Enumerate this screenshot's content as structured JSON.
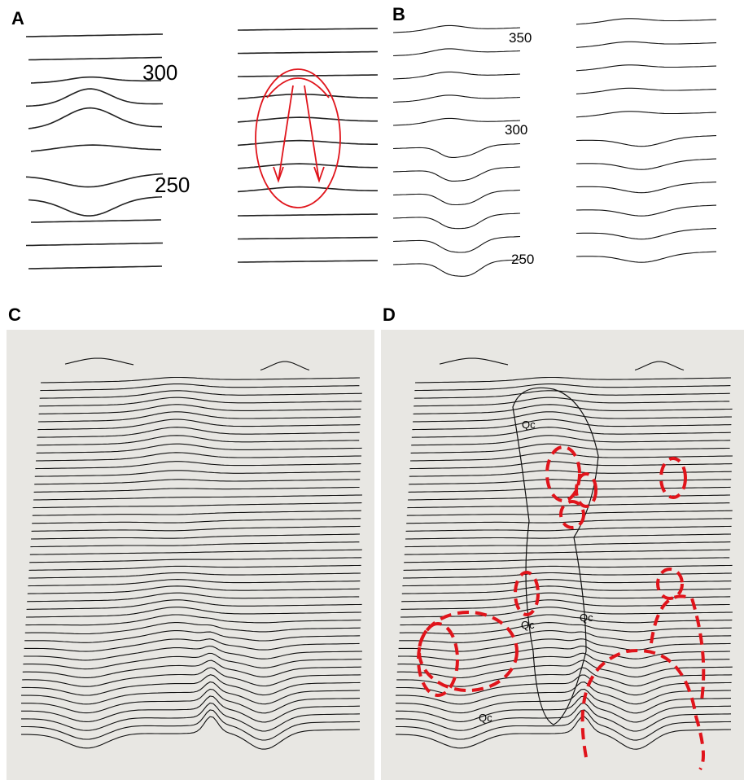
{
  "panels": [
    {
      "label": "A",
      "contour_labels": [
        "300",
        "250"
      ]
    },
    {
      "label": "B",
      "contour_labels": [
        "350",
        "300",
        "250"
      ]
    },
    {
      "label": "C"
    },
    {
      "label": "D",
      "unit_labels": [
        "Qc",
        "Qc",
        "Qc",
        "Qc"
      ]
    }
  ]
}
